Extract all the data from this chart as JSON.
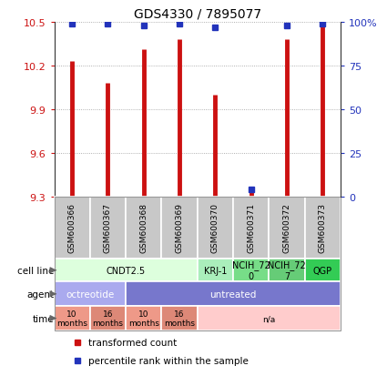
{
  "title": "GDS4330 / 7895077",
  "samples": [
    "GSM600366",
    "GSM600367",
    "GSM600368",
    "GSM600369",
    "GSM600370",
    "GSM600371",
    "GSM600372",
    "GSM600373"
  ],
  "bar_values": [
    10.23,
    10.08,
    10.31,
    10.38,
    10.0,
    9.335,
    10.38,
    10.49
  ],
  "percentile_values": [
    99,
    99,
    98,
    99,
    97,
    4,
    98,
    99
  ],
  "ylim": [
    9.3,
    10.5
  ],
  "yticks": [
    9.3,
    9.6,
    9.9,
    10.2,
    10.5
  ],
  "right_yticks": [
    0,
    25,
    50,
    75,
    100
  ],
  "bar_color": "#cc1111",
  "dot_color": "#2233bb",
  "cell_line_groups": [
    {
      "label": "CNDT2.5",
      "span": [
        0,
        4
      ],
      "color": "#ddffdd"
    },
    {
      "label": "KRJ-1",
      "span": [
        4,
        5
      ],
      "color": "#aaeebb"
    },
    {
      "label": "NCIH_72\n0",
      "span": [
        5,
        6
      ],
      "color": "#77dd88"
    },
    {
      "label": "NCIH_72\n7",
      "span": [
        6,
        7
      ],
      "color": "#66cc77"
    },
    {
      "label": "QGP",
      "span": [
        7,
        8
      ],
      "color": "#33cc55"
    }
  ],
  "agent_groups": [
    {
      "label": "octreotide",
      "span": [
        0,
        2
      ],
      "color": "#aaaaee"
    },
    {
      "label": "untreated",
      "span": [
        2,
        8
      ],
      "color": "#7777cc"
    }
  ],
  "time_groups": [
    {
      "label": "10\nmonths",
      "span": [
        0,
        1
      ],
      "color": "#ee9988"
    },
    {
      "label": "16\nmonths",
      "span": [
        1,
        2
      ],
      "color": "#dd8877"
    },
    {
      "label": "10\nmonths",
      "span": [
        2,
        3
      ],
      "color": "#ee9988"
    },
    {
      "label": "16\nmonths",
      "span": [
        3,
        4
      ],
      "color": "#dd8877"
    },
    {
      "label": "n/a",
      "span": [
        4,
        8
      ],
      "color": "#ffcccc"
    }
  ],
  "plot_bg": "#ffffff",
  "grid_color": "#999999"
}
